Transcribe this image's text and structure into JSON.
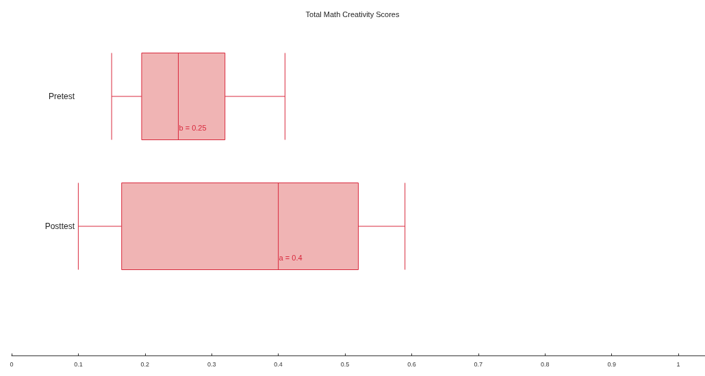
{
  "chart_data": {
    "type": "box",
    "title": "Total Math Creativity Scores",
    "orientation": "horizontal",
    "categories": [
      "Pretest",
      "Posttest"
    ],
    "color": "#d8283c",
    "boxes": [
      {
        "low": 0.15,
        "q1": 0.195,
        "median": 0.25,
        "q3": 0.32,
        "high": 0.41
      },
      {
        "low": 0.1,
        "q1": 0.165,
        "median": 0.4,
        "q3": 0.52,
        "high": 0.59
      }
    ],
    "annotations": [
      "b = 0.25",
      "a = 0.4"
    ],
    "xlim": [
      0,
      1.04
    ],
    "xticks": [
      0,
      0.1,
      0.2,
      0.3,
      0.4,
      0.5,
      0.6,
      0.7,
      0.8,
      0.9,
      1
    ],
    "grid": false
  }
}
